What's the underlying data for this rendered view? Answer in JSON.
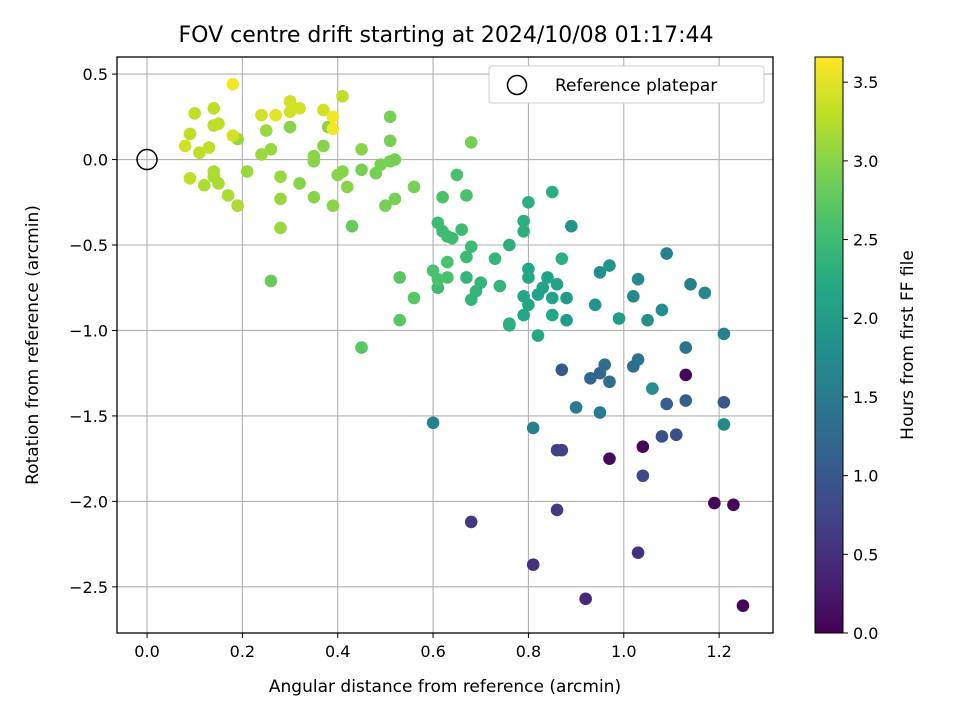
{
  "chart_data": {
    "type": "scatter",
    "title": "FOV centre drift starting at 2024/10/08 01:17:44",
    "xlabel": "Angular distance from reference (arcmin)",
    "ylabel": "Rotation from reference (arcmin)",
    "xlim": [
      -0.063,
      1.313
    ],
    "ylim": [
      -2.77,
      0.6
    ],
    "xticks": [
      0.0,
      0.2,
      0.4,
      0.6,
      0.8,
      1.0,
      1.2
    ],
    "xtick_labels": [
      "0.0",
      "0.2",
      "0.4",
      "0.6",
      "0.8",
      "1.0",
      "1.2"
    ],
    "yticks": [
      0.5,
      0.0,
      -0.5,
      -1.0,
      -1.5,
      -2.0,
      -2.5
    ],
    "ytick_labels": [
      "0.5",
      "0.0",
      "−0.5",
      "−1.0",
      "−1.5",
      "−2.0",
      "−2.5"
    ],
    "grid": true,
    "colorbar": {
      "label": "Hours from first FF file",
      "range": [
        0.0,
        3.66
      ],
      "ticks": [
        0.0,
        0.5,
        1.0,
        1.5,
        2.0,
        2.5,
        3.0,
        3.5
      ],
      "tick_labels": [
        "0.0",
        "0.5",
        "1.0",
        "1.5",
        "2.0",
        "2.5",
        "3.0",
        "3.5"
      ],
      "colormap": "viridis"
    },
    "reference": {
      "label": "Reference platepar",
      "x": 0.0,
      "y": 0.0
    },
    "legend_position": "top-right",
    "points": [
      [
        1.25,
        -2.61,
        0.05
      ],
      [
        1.23,
        -2.02,
        0.05
      ],
      [
        1.19,
        -2.01,
        0.05
      ],
      [
        1.13,
        -1.26,
        0.05
      ],
      [
        1.04,
        -1.68,
        0.05
      ],
      [
        0.97,
        -1.75,
        0.1
      ],
      [
        0.92,
        -2.57,
        0.4
      ],
      [
        1.03,
        -2.3,
        0.5
      ],
      [
        0.81,
        -2.37,
        0.5
      ],
      [
        0.86,
        -2.05,
        0.6
      ],
      [
        0.68,
        -2.12,
        0.6
      ],
      [
        0.86,
        -1.7,
        0.7
      ],
      [
        0.87,
        -1.7,
        0.7
      ],
      [
        1.04,
        -1.85,
        0.8
      ],
      [
        1.08,
        -1.62,
        0.9
      ],
      [
        1.11,
        -1.61,
        0.9
      ],
      [
        0.87,
        -1.23,
        1.0
      ],
      [
        1.21,
        -1.42,
        1.0
      ],
      [
        1.09,
        -1.43,
        1.1
      ],
      [
        1.13,
        -1.41,
        1.1
      ],
      [
        0.95,
        -1.25,
        1.2
      ],
      [
        0.93,
        -1.28,
        1.2
      ],
      [
        0.97,
        -1.3,
        1.3
      ],
      [
        0.96,
        -1.2,
        1.3
      ],
      [
        1.02,
        -1.21,
        1.3
      ],
      [
        1.03,
        -1.17,
        1.4
      ],
      [
        1.13,
        -1.1,
        1.4
      ],
      [
        0.95,
        -1.48,
        1.5
      ],
      [
        0.9,
        -1.45,
        1.5
      ],
      [
        0.81,
        -1.57,
        1.6
      ],
      [
        0.6,
        -1.54,
        1.6
      ],
      [
        1.21,
        -1.55,
        1.7
      ],
      [
        1.21,
        -1.02,
        1.6
      ],
      [
        1.06,
        -1.34,
        1.8
      ],
      [
        1.09,
        -0.55,
        1.6
      ],
      [
        1.14,
        -0.73,
        1.6
      ],
      [
        1.17,
        -0.78,
        1.7
      ],
      [
        1.03,
        -0.7,
        1.7
      ],
      [
        1.02,
        -0.8,
        1.7
      ],
      [
        1.08,
        -0.88,
        1.8
      ],
      [
        1.05,
        -0.94,
        1.8
      ],
      [
        0.95,
        -0.66,
        1.8
      ],
      [
        0.97,
        -0.62,
        1.9
      ],
      [
        0.94,
        -0.85,
        1.9
      ],
      [
        0.89,
        -0.39,
        1.9
      ],
      [
        0.99,
        -0.93,
        2.0
      ],
      [
        0.88,
        -0.81,
        2.0
      ],
      [
        0.88,
        -0.94,
        2.0
      ],
      [
        0.86,
        -0.73,
        2.1
      ],
      [
        0.84,
        -0.69,
        2.1
      ],
      [
        0.83,
        -0.75,
        2.1
      ],
      [
        0.85,
        -0.81,
        2.1
      ],
      [
        0.82,
        -0.79,
        2.1
      ],
      [
        0.8,
        -0.69,
        2.2
      ],
      [
        0.8,
        -0.64,
        2.2
      ],
      [
        0.79,
        -0.8,
        2.2
      ],
      [
        0.8,
        -0.85,
        2.2
      ],
      [
        0.79,
        -0.91,
        2.2
      ],
      [
        0.85,
        -0.91,
        2.2
      ],
      [
        0.82,
        -1.03,
        2.2
      ],
      [
        0.87,
        -0.58,
        2.3
      ],
      [
        0.79,
        -0.36,
        2.3
      ],
      [
        0.79,
        -0.42,
        2.3
      ],
      [
        0.8,
        -0.25,
        2.3
      ],
      [
        0.85,
        -0.19,
        2.3
      ],
      [
        0.76,
        -0.5,
        2.3
      ],
      [
        0.76,
        -0.97,
        2.3
      ],
      [
        0.76,
        -0.96,
        2.3
      ],
      [
        0.74,
        -0.74,
        2.4
      ],
      [
        0.73,
        -0.58,
        2.4
      ],
      [
        0.7,
        -0.72,
        2.4
      ],
      [
        0.69,
        -0.77,
        2.4
      ],
      [
        0.68,
        -0.82,
        2.4
      ],
      [
        0.67,
        -0.69,
        2.4
      ],
      [
        0.67,
        -0.57,
        2.5
      ],
      [
        0.68,
        -0.51,
        2.5
      ],
      [
        0.66,
        -0.41,
        2.5
      ],
      [
        0.64,
        -0.46,
        2.5
      ],
      [
        0.63,
        -0.45,
        2.5
      ],
      [
        0.62,
        -0.42,
        2.5
      ],
      [
        0.61,
        -0.37,
        2.5
      ],
      [
        0.61,
        -0.75,
        2.5
      ],
      [
        0.61,
        -0.7,
        2.6
      ],
      [
        0.6,
        -0.65,
        2.6
      ],
      [
        0.63,
        -0.6,
        2.6
      ],
      [
        0.63,
        -0.69,
        2.6
      ],
      [
        0.62,
        -0.22,
        2.6
      ],
      [
        0.67,
        -0.21,
        2.6
      ],
      [
        0.65,
        -0.09,
        2.6
      ],
      [
        0.53,
        -0.69,
        2.7
      ],
      [
        0.56,
        -0.81,
        2.7
      ],
      [
        0.53,
        -0.94,
        2.7
      ],
      [
        0.45,
        -1.1,
        2.7
      ],
      [
        0.43,
        -0.39,
        2.8
      ],
      [
        0.26,
        -0.71,
        2.8
      ],
      [
        0.68,
        0.1,
        2.9
      ],
      [
        0.56,
        -0.16,
        2.9
      ],
      [
        0.52,
        -0.23,
        2.9
      ],
      [
        0.5,
        -0.27,
        2.9
      ],
      [
        0.51,
        -0.01,
        2.9
      ],
      [
        0.52,
        0.0,
        2.9
      ],
      [
        0.51,
        0.11,
        2.9
      ],
      [
        0.51,
        0.25,
        2.9
      ],
      [
        0.49,
        -0.03,
        2.9
      ],
      [
        0.48,
        -0.08,
        2.9
      ],
      [
        0.45,
        -0.06,
        2.9
      ],
      [
        0.45,
        0.06,
        3.0
      ],
      [
        0.42,
        -0.16,
        3.0
      ],
      [
        0.41,
        -0.07,
        3.0
      ],
      [
        0.4,
        -0.09,
        3.0
      ],
      [
        0.39,
        -0.27,
        3.0
      ],
      [
        0.38,
        0.19,
        3.0
      ],
      [
        0.35,
        -0.01,
        3.0
      ],
      [
        0.35,
        0.02,
        3.0
      ],
      [
        0.35,
        -0.22,
        3.0
      ],
      [
        0.37,
        0.08,
        3.0
      ],
      [
        0.32,
        -0.14,
        3.0
      ],
      [
        0.3,
        0.19,
        3.0
      ],
      [
        0.28,
        -0.1,
        3.1
      ],
      [
        0.28,
        -0.23,
        3.1
      ],
      [
        0.28,
        -0.4,
        3.1
      ],
      [
        0.26,
        0.06,
        3.1
      ],
      [
        0.24,
        0.03,
        3.1
      ],
      [
        0.25,
        0.17,
        3.1
      ],
      [
        0.21,
        -0.07,
        3.1
      ],
      [
        0.19,
        -0.27,
        3.2
      ],
      [
        0.19,
        0.12,
        3.1
      ],
      [
        0.17,
        -0.21,
        3.2
      ],
      [
        0.15,
        -0.14,
        3.2
      ],
      [
        0.14,
        -0.1,
        3.2
      ],
      [
        0.14,
        -0.07,
        3.2
      ],
      [
        0.12,
        -0.15,
        3.2
      ],
      [
        0.11,
        0.04,
        3.3
      ],
      [
        0.13,
        0.07,
        3.3
      ],
      [
        0.14,
        0.2,
        3.3
      ],
      [
        0.14,
        0.3,
        3.3
      ],
      [
        0.1,
        0.27,
        3.3
      ],
      [
        0.09,
        -0.11,
        3.3
      ],
      [
        0.09,
        0.15,
        3.3
      ],
      [
        0.08,
        0.08,
        3.4
      ],
      [
        0.15,
        0.21,
        3.3
      ],
      [
        0.18,
        0.14,
        3.4
      ],
      [
        0.24,
        0.26,
        3.4
      ],
      [
        0.27,
        0.26,
        3.5
      ],
      [
        0.3,
        0.34,
        3.4
      ],
      [
        0.3,
        0.28,
        3.4
      ],
      [
        0.32,
        0.3,
        3.4
      ],
      [
        0.37,
        0.29,
        3.4
      ],
      [
        0.41,
        0.37,
        3.3
      ],
      [
        0.39,
        0.18,
        3.6
      ],
      [
        0.39,
        0.25,
        3.6
      ],
      [
        0.18,
        0.44,
        3.6
      ]
    ]
  }
}
